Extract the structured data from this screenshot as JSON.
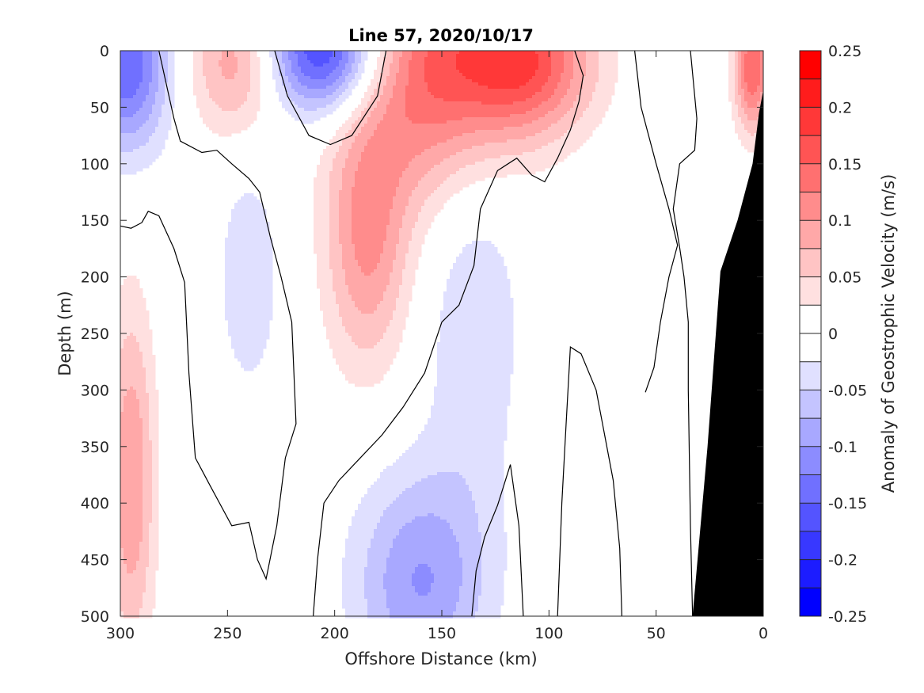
{
  "chart_data": {
    "type": "heatmap",
    "title": "Line 57, 2020/10/17",
    "xlabel": "Offshore Distance (km)",
    "ylabel": "Depth (m)",
    "colorbar_label": "Anomaly of Geostrophic Velocity (m/s)",
    "xlim": [
      300,
      0
    ],
    "ylim": [
      0,
      500
    ],
    "x_ticks": [
      "300",
      "250",
      "200",
      "150",
      "100",
      "50",
      "0"
    ],
    "x_tick_values": [
      300,
      250,
      200,
      150,
      100,
      50,
      0
    ],
    "y_ticks": [
      "0",
      "50",
      "100",
      "150",
      "200",
      "250",
      "300",
      "350",
      "400",
      "450",
      "500"
    ],
    "y_tick_values": [
      0,
      50,
      100,
      150,
      200,
      250,
      300,
      350,
      400,
      450,
      500
    ],
    "colorbar_ticks": [
      "0.25",
      "0.2",
      "0.15",
      "0.1",
      "0.05",
      "0",
      "-0.05",
      "-0.1",
      "-0.15",
      "-0.2",
      "-0.25"
    ],
    "colorbar_tick_values": [
      0.25,
      0.2,
      0.15,
      0.1,
      0.05,
      0,
      -0.05,
      -0.1,
      -0.15,
      -0.2,
      -0.25
    ],
    "color_levels": {
      "positive": [
        "#ffe0e0",
        "#ffc4c4",
        "#ffa8a8",
        "#ff8c8c",
        "#ff7070",
        "#ff5454",
        "#ff3838",
        "#ff1c1c",
        "#ff0000"
      ],
      "negative": [
        "#e0e0ff",
        "#c4c4ff",
        "#a8a8ff",
        "#8c8cff",
        "#7070ff",
        "#5454ff",
        "#3838ff",
        "#1c1cff",
        "#0000ff"
      ],
      "zero": "#ffffff",
      "bathymetry": "#000000"
    },
    "grid": false,
    "features": [
      {
        "name": "negative core",
        "sign": -1,
        "x": 297,
        "z": 10,
        "peak": -0.15
      },
      {
        "name": "positive core",
        "sign": 1,
        "x": 245,
        "z": 10,
        "peak": 0.1
      },
      {
        "name": "negative core",
        "sign": -1,
        "x": 205,
        "z": 0,
        "peak": -0.2
      },
      {
        "name": "positive core",
        "sign": 1,
        "x": 155,
        "z": 15,
        "peak": 0.15
      },
      {
        "name": "positive core",
        "sign": 1,
        "x": 110,
        "z": 10,
        "peak": 0.15
      },
      {
        "name": "negative core",
        "sign": -1,
        "x": 160,
        "z": 470,
        "peak": -0.1
      },
      {
        "name": "negative core",
        "sign": -1,
        "x": 135,
        "z": 230,
        "peak": -0.05
      },
      {
        "name": "negative core",
        "sign": -1,
        "x": 240,
        "z": 200,
        "peak": -0.05
      },
      {
        "name": "positive core",
        "sign": 1,
        "x": 185,
        "z": 170,
        "peak": 0.1
      },
      {
        "name": "positive core",
        "sign": 1,
        "x": 295,
        "z": 380,
        "peak": 0.1
      },
      {
        "name": "positive core",
        "sign": 1,
        "x": 5,
        "z": 15,
        "peak": 0.15
      }
    ]
  }
}
